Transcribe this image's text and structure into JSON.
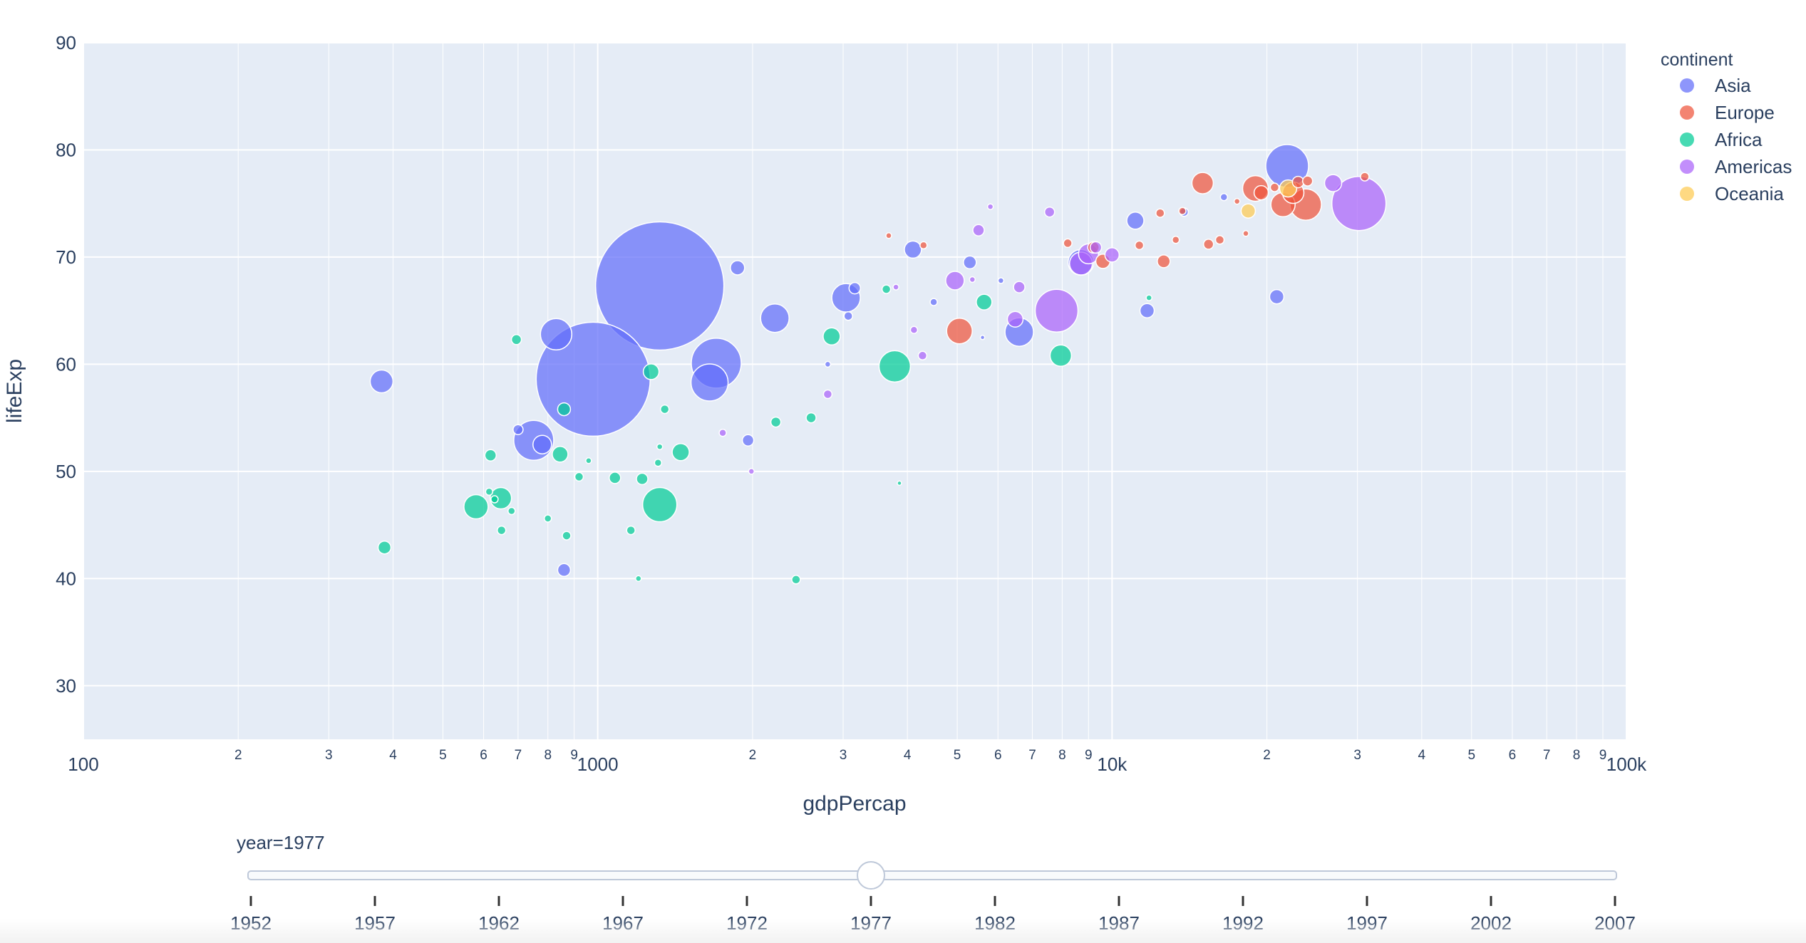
{
  "chart_data": {
    "type": "scatter",
    "xlabel": "gdpPercap",
    "ylabel": "lifeExp",
    "x_scale": "log",
    "xlim": [
      100,
      100000
    ],
    "ylim": [
      25,
      90
    ],
    "x_major_ticks": [
      {
        "v": 100,
        "label": "100"
      },
      {
        "v": 1000,
        "label": "1000"
      },
      {
        "v": 10000,
        "label": "10k"
      },
      {
        "v": 100000,
        "label": "100k"
      }
    ],
    "x_minor_ticks": [
      2,
      3,
      4,
      5,
      6,
      7,
      8,
      9
    ],
    "y_ticks": [
      30,
      40,
      50,
      60,
      70,
      80,
      90
    ],
    "grid": true,
    "legend": {
      "title": "continent",
      "position": "top-right"
    },
    "series": [
      {
        "name": "Asia",
        "color": "#636efa",
        "points": [
          [
            1320,
            67.3,
            90
          ],
          [
            980,
            58.6,
            80
          ],
          [
            2210,
            64.3,
            20
          ],
          [
            3040,
            66.2,
            20
          ],
          [
            4100,
            70.7,
            12
          ],
          [
            21900,
            78.5,
            30
          ],
          [
            1700,
            60.1,
            35
          ],
          [
            1650,
            58.3,
            26
          ],
          [
            830,
            62.8,
            22
          ],
          [
            751,
            52.9,
            28
          ],
          [
            780,
            52.5,
            13
          ],
          [
            380,
            58.4,
            16
          ],
          [
            1870,
            69.0,
            10
          ],
          [
            3160,
            67.1,
            8
          ],
          [
            5290,
            69.5,
            9
          ],
          [
            6600,
            63.0,
            20
          ],
          [
            8700,
            69.5,
            18
          ],
          [
            11100,
            73.4,
            12
          ],
          [
            11700,
            65.0,
            10
          ],
          [
            20900,
            66.3,
            10
          ],
          [
            1960,
            52.9,
            8
          ],
          [
            860,
            40.8,
            9
          ],
          [
            700,
            53.9,
            7
          ],
          [
            4500,
            65.8,
            5
          ],
          [
            3070,
            64.5,
            6
          ],
          [
            16500,
            75.6,
            5
          ],
          [
            13800,
            74.2,
            6
          ],
          [
            6080,
            67.8,
            4
          ],
          [
            2800,
            60.0,
            4
          ],
          [
            5600,
            62.5,
            3
          ]
        ]
      },
      {
        "name": "Europe",
        "color": "#ef553b",
        "points": [
          [
            5050,
            63.1,
            18
          ],
          [
            9600,
            69.6,
            10
          ],
          [
            12600,
            69.6,
            9
          ],
          [
            15000,
            76.9,
            15
          ],
          [
            19000,
            76.4,
            18
          ],
          [
            21500,
            74.9,
            17
          ],
          [
            23800,
            74.9,
            22
          ],
          [
            22500,
            76.0,
            15
          ],
          [
            19500,
            76.0,
            10
          ],
          [
            15400,
            71.2,
            7
          ],
          [
            16200,
            71.6,
            6
          ],
          [
            23000,
            77.0,
            8
          ],
          [
            24000,
            77.1,
            7
          ],
          [
            31000,
            77.5,
            6
          ],
          [
            12400,
            74.1,
            6
          ],
          [
            13700,
            74.3,
            5
          ],
          [
            11300,
            71.1,
            6
          ],
          [
            13300,
            71.6,
            5
          ],
          [
            8200,
            71.3,
            6
          ],
          [
            9200,
            70.9,
            8
          ],
          [
            4300,
            71.1,
            5
          ],
          [
            3680,
            72.0,
            4
          ],
          [
            18200,
            72.2,
            4
          ],
          [
            17500,
            75.2,
            4
          ],
          [
            20700,
            76.5,
            6
          ]
        ]
      },
      {
        "name": "Africa",
        "color": "#00cc96",
        "points": [
          [
            1320,
            46.9,
            24
          ],
          [
            3780,
            59.8,
            22
          ],
          [
            1450,
            51.8,
            12
          ],
          [
            2850,
            62.6,
            12
          ],
          [
            5640,
            65.8,
            11
          ],
          [
            7950,
            60.8,
            15
          ],
          [
            1270,
            59.3,
            11
          ],
          [
            648,
            47.5,
            15
          ],
          [
            580,
            46.7,
            17
          ],
          [
            695,
            62.3,
            7
          ],
          [
            385,
            42.9,
            9
          ],
          [
            619,
            51.5,
            8
          ],
          [
            845,
            51.6,
            11
          ],
          [
            860,
            55.8,
            9
          ],
          [
            1080,
            49.4,
            8
          ],
          [
            1220,
            49.3,
            8
          ],
          [
            2220,
            54.6,
            7
          ],
          [
            2600,
            55.0,
            7
          ],
          [
            1160,
            44.5,
            6
          ],
          [
            2430,
            39.9,
            6
          ],
          [
            1200,
            40.0,
            4
          ],
          [
            650,
            44.5,
            6
          ],
          [
            870,
            44.0,
            6
          ],
          [
            800,
            45.6,
            5
          ],
          [
            615,
            48.1,
            5
          ],
          [
            920,
            49.5,
            6
          ],
          [
            1350,
            55.8,
            6
          ],
          [
            1320,
            52.3,
            4
          ],
          [
            1310,
            50.8,
            5
          ],
          [
            3640,
            67.0,
            6
          ],
          [
            11800,
            66.2,
            4
          ],
          [
            680,
            46.3,
            5
          ],
          [
            960,
            51.0,
            4
          ],
          [
            630,
            47.4,
            5
          ],
          [
            3860,
            48.9,
            3
          ]
        ]
      },
      {
        "name": "Americas",
        "color": "#ab63fa",
        "points": [
          [
            30200,
            75.0,
            38
          ],
          [
            7800,
            65.0,
            30
          ],
          [
            9000,
            70.3,
            14
          ],
          [
            8700,
            69.4,
            16
          ],
          [
            10000,
            70.2,
            10
          ],
          [
            26900,
            76.9,
            12
          ],
          [
            4950,
            67.8,
            13
          ],
          [
            6480,
            64.2,
            11
          ],
          [
            6600,
            67.2,
            8
          ],
          [
            5500,
            72.5,
            8
          ],
          [
            7560,
            74.2,
            7
          ],
          [
            9300,
            70.9,
            8
          ],
          [
            2800,
            57.2,
            6
          ],
          [
            4280,
            60.8,
            6
          ],
          [
            1750,
            53.6,
            5
          ],
          [
            1990,
            50.0,
            4
          ],
          [
            5800,
            74.7,
            4
          ],
          [
            3800,
            67.2,
            4
          ],
          [
            4120,
            63.2,
            5
          ],
          [
            5350,
            67.9,
            4
          ]
        ]
      },
      {
        "name": "Oceania",
        "color": "#fecb52",
        "points": [
          [
            22000,
            76.4,
            12
          ],
          [
            18400,
            74.3,
            10
          ]
        ]
      }
    ],
    "slider": {
      "label": "year=1977",
      "current": 1977,
      "years": [
        "1952",
        "1957",
        "1962",
        "1967",
        "1972",
        "1977",
        "1982",
        "1987",
        "1992",
        "1997",
        "2002",
        "2007"
      ]
    }
  }
}
